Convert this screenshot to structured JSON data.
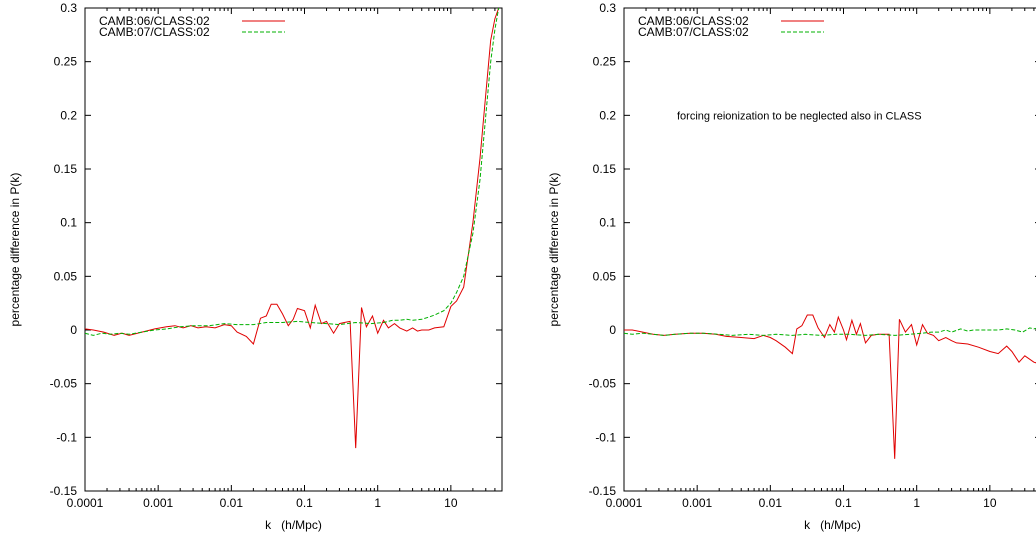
{
  "chart_data": [
    {
      "type": "line",
      "title": "",
      "xlabel": "k   (h/Mpc)",
      "ylabel": "percentage difference in P(k)",
      "xscale": "log",
      "xlim": [
        0.0001,
        50
      ],
      "ylim": [
        -0.15,
        0.3
      ],
      "x_ticks": [
        0.0001,
        0.001,
        0.01,
        0.1,
        1,
        10
      ],
      "x_tick_labels": [
        "0.0001",
        "0.001",
        "0.01",
        "0.1",
        "1",
        "10"
      ],
      "y_ticks": [
        -0.15,
        -0.1,
        -0.05,
        0,
        0.05,
        0.1,
        0.15,
        0.2,
        0.25,
        0.3
      ],
      "y_tick_labels": [
        "-0.15",
        "-0.1",
        "-0.05",
        "0",
        "0.05",
        "0.1",
        "0.15",
        "0.2",
        "0.25",
        "0.3"
      ],
      "grid": false,
      "legend_position": "top-left",
      "annotation": "",
      "series": [
        {
          "name": "CAMB:06/CLASS:02",
          "color": "#e00000",
          "dash": "solid",
          "points": [
            [
              0.0001,
              0.001
            ],
            [
              0.00013,
              0.0
            ],
            [
              0.00018,
              -0.002
            ],
            [
              0.00025,
              -0.005
            ],
            [
              0.00032,
              -0.003
            ],
            [
              0.0004,
              -0.005
            ],
            [
              0.0006,
              -0.002
            ],
            [
              0.0009,
              0.001
            ],
            [
              0.0013,
              0.003
            ],
            [
              0.0017,
              0.004
            ],
            [
              0.0022,
              0.002
            ],
            [
              0.0028,
              0.004
            ],
            [
              0.0035,
              0.002
            ],
            [
              0.0045,
              0.003
            ],
            [
              0.006,
              0.002
            ],
            [
              0.008,
              0.005
            ],
            [
              0.01,
              0.004
            ],
            [
              0.012,
              -0.002
            ],
            [
              0.016,
              -0.006
            ],
            [
              0.02,
              -0.013
            ],
            [
              0.025,
              0.011
            ],
            [
              0.03,
              0.013
            ],
            [
              0.035,
              0.024
            ],
            [
              0.042,
              0.024
            ],
            [
              0.05,
              0.015
            ],
            [
              0.06,
              0.004
            ],
            [
              0.07,
              0.01
            ],
            [
              0.08,
              0.02
            ],
            [
              0.1,
              0.018
            ],
            [
              0.12,
              0.002
            ],
            [
              0.14,
              0.023
            ],
            [
              0.17,
              0.006
            ],
            [
              0.2,
              0.008
            ],
            [
              0.25,
              -0.003
            ],
            [
              0.3,
              0.006
            ],
            [
              0.35,
              0.007
            ],
            [
              0.42,
              0.008
            ],
            [
              0.5,
              -0.11
            ],
            [
              0.6,
              0.021
            ],
            [
              0.7,
              0.003
            ],
            [
              0.85,
              0.013
            ],
            [
              1.0,
              -0.003
            ],
            [
              1.2,
              0.009
            ],
            [
              1.4,
              0.002
            ],
            [
              1.7,
              0.006
            ],
            [
              2.0,
              0.002
            ],
            [
              2.5,
              -0.001
            ],
            [
              3.0,
              0.002
            ],
            [
              3.5,
              -0.001
            ],
            [
              4.0,
              0.0
            ],
            [
              5.0,
              0.0
            ],
            [
              6.0,
              0.002
            ],
            [
              8.0,
              0.003
            ],
            [
              10.0,
              0.022
            ],
            [
              12.0,
              0.027
            ],
            [
              15.0,
              0.04
            ],
            [
              20.0,
              0.1
            ],
            [
              25.0,
              0.16
            ],
            [
              30.0,
              0.22
            ],
            [
              35.0,
              0.27
            ],
            [
              40.0,
              0.29
            ],
            [
              45.0,
              0.3
            ]
          ]
        },
        {
          "name": "CAMB:07/CLASS:02",
          "color": "#00b000",
          "dash": "dashed",
          "points": [
            [
              0.0001,
              -0.003
            ],
            [
              0.00013,
              -0.005
            ],
            [
              0.00017,
              -0.003
            ],
            [
              0.00022,
              -0.004
            ],
            [
              0.0003,
              -0.003
            ],
            [
              0.0004,
              -0.004
            ],
            [
              0.0006,
              -0.002
            ],
            [
              0.0009,
              0.0
            ],
            [
              0.0013,
              0.001
            ],
            [
              0.002,
              0.003
            ],
            [
              0.003,
              0.004
            ],
            [
              0.005,
              0.004
            ],
            [
              0.008,
              0.006
            ],
            [
              0.012,
              0.005
            ],
            [
              0.02,
              0.005
            ],
            [
              0.03,
              0.007
            ],
            [
              0.05,
              0.007
            ],
            [
              0.08,
              0.008
            ],
            [
              0.12,
              0.007
            ],
            [
              0.2,
              0.006
            ],
            [
              0.3,
              0.005
            ],
            [
              0.5,
              0.007
            ],
            [
              0.8,
              0.006
            ],
            [
              1.2,
              0.007
            ],
            [
              1.6,
              0.009
            ],
            [
              2.0,
              0.009
            ],
            [
              2.5,
              0.01
            ],
            [
              3.0,
              0.009
            ],
            [
              4.0,
              0.01
            ],
            [
              5.0,
              0.012
            ],
            [
              6.0,
              0.014
            ],
            [
              8.0,
              0.018
            ],
            [
              10.0,
              0.025
            ],
            [
              12.0,
              0.035
            ],
            [
              15.0,
              0.05
            ],
            [
              20.0,
              0.09
            ],
            [
              25.0,
              0.14
            ],
            [
              30.0,
              0.2
            ],
            [
              35.0,
              0.25
            ],
            [
              40.0,
              0.28
            ],
            [
              45.0,
              0.3
            ]
          ]
        }
      ]
    },
    {
      "type": "line",
      "title": "",
      "xlabel": "k   (h/Mpc)",
      "ylabel": "percentage difference in P(k)",
      "xscale": "log",
      "xlim": [
        0.0001,
        50
      ],
      "ylim": [
        -0.15,
        0.3
      ],
      "x_ticks": [
        0.0001,
        0.001,
        0.01,
        0.1,
        1,
        10
      ],
      "x_tick_labels": [
        "0.0001",
        "0.001",
        "0.01",
        "0.1",
        "1",
        "10"
      ],
      "y_ticks": [
        -0.15,
        -0.1,
        -0.05,
        0,
        0.05,
        0.1,
        0.15,
        0.2,
        0.25,
        0.3
      ],
      "y_tick_labels": [
        "-0.15",
        "-0.1",
        "-0.05",
        "0",
        "0.05",
        "0.1",
        "0.15",
        "0.2",
        "0.25",
        "0.3"
      ],
      "grid": false,
      "legend_position": "top-left",
      "annotation": "forcing reionization to be neglected also in CLASS",
      "series": [
        {
          "name": "CAMB:06/CLASS:02",
          "color": "#e00000",
          "dash": "solid",
          "points": [
            [
              0.0001,
              0.0
            ],
            [
              0.00013,
              0.0
            ],
            [
              0.00018,
              -0.002
            ],
            [
              0.00025,
              -0.004
            ],
            [
              0.00035,
              -0.005
            ],
            [
              0.0005,
              -0.004
            ],
            [
              0.0008,
              -0.003
            ],
            [
              0.0012,
              -0.003
            ],
            [
              0.0018,
              -0.004
            ],
            [
              0.0025,
              -0.006
            ],
            [
              0.004,
              -0.007
            ],
            [
              0.006,
              -0.008
            ],
            [
              0.008,
              -0.005
            ],
            [
              0.01,
              -0.007
            ],
            [
              0.012,
              -0.01
            ],
            [
              0.016,
              -0.016
            ],
            [
              0.02,
              -0.022
            ],
            [
              0.023,
              0.001
            ],
            [
              0.027,
              0.004
            ],
            [
              0.032,
              0.014
            ],
            [
              0.038,
              0.014
            ],
            [
              0.045,
              0.002
            ],
            [
              0.055,
              -0.007
            ],
            [
              0.065,
              0.005
            ],
            [
              0.075,
              -0.002
            ],
            [
              0.085,
              0.012
            ],
            [
              0.1,
              0.0
            ],
            [
              0.11,
              -0.009
            ],
            [
              0.13,
              0.009
            ],
            [
              0.15,
              -0.004
            ],
            [
              0.17,
              0.006
            ],
            [
              0.2,
              -0.012
            ],
            [
              0.24,
              -0.005
            ],
            [
              0.3,
              -0.004
            ],
            [
              0.35,
              -0.004
            ],
            [
              0.42,
              -0.004
            ],
            [
              0.5,
              -0.12
            ],
            [
              0.58,
              0.01
            ],
            [
              0.7,
              -0.002
            ],
            [
              0.85,
              0.005
            ],
            [
              1.0,
              -0.014
            ],
            [
              1.2,
              0.005
            ],
            [
              1.4,
              -0.003
            ],
            [
              1.7,
              -0.005
            ],
            [
              2.0,
              -0.01
            ],
            [
              2.5,
              -0.007
            ],
            [
              3.0,
              -0.01
            ],
            [
              3.5,
              -0.012
            ],
            [
              5.0,
              -0.013
            ],
            [
              7.0,
              -0.016
            ],
            [
              10.0,
              -0.02
            ],
            [
              13.0,
              -0.022
            ],
            [
              17.0,
              -0.015
            ],
            [
              20.0,
              -0.02
            ],
            [
              25.0,
              -0.03
            ],
            [
              30.0,
              -0.024
            ],
            [
              40.0,
              -0.03
            ],
            [
              45.0,
              -0.031
            ]
          ]
        },
        {
          "name": "CAMB:07/CLASS:02",
          "color": "#00b000",
          "dash": "dashed",
          "points": [
            [
              0.0001,
              -0.003
            ],
            [
              0.00013,
              -0.004
            ],
            [
              0.00018,
              -0.003
            ],
            [
              0.00025,
              -0.004
            ],
            [
              0.00035,
              -0.005
            ],
            [
              0.0005,
              -0.004
            ],
            [
              0.0008,
              -0.003
            ],
            [
              0.0012,
              -0.003
            ],
            [
              0.002,
              -0.004
            ],
            [
              0.003,
              -0.005
            ],
            [
              0.005,
              -0.004
            ],
            [
              0.008,
              -0.005
            ],
            [
              0.012,
              -0.004
            ],
            [
              0.02,
              -0.005
            ],
            [
              0.03,
              -0.004
            ],
            [
              0.05,
              -0.005
            ],
            [
              0.08,
              -0.004
            ],
            [
              0.12,
              -0.004
            ],
            [
              0.2,
              -0.005
            ],
            [
              0.3,
              -0.004
            ],
            [
              0.5,
              -0.005
            ],
            [
              0.8,
              -0.004
            ],
            [
              1.2,
              -0.003
            ],
            [
              1.6,
              -0.002
            ],
            [
              2.0,
              -0.002
            ],
            [
              2.5,
              0.0
            ],
            [
              3.0,
              -0.002
            ],
            [
              4.0,
              0.001
            ],
            [
              5.0,
              -0.001
            ],
            [
              6.0,
              0.0
            ],
            [
              8.0,
              0.0
            ],
            [
              10.0,
              0.0
            ],
            [
              13.0,
              0.0
            ],
            [
              17.0,
              0.001
            ],
            [
              22.0,
              0.0
            ],
            [
              28.0,
              -0.002
            ],
            [
              35.0,
              0.002
            ],
            [
              40.0,
              0.001
            ],
            [
              45.0,
              0.002
            ]
          ]
        }
      ]
    }
  ]
}
